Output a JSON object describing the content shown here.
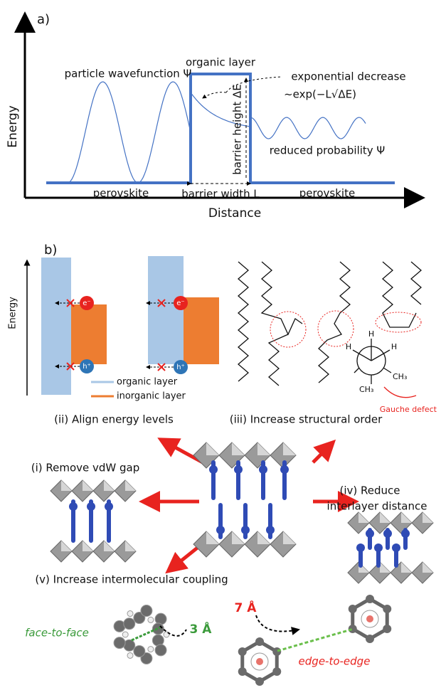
{
  "panel_a": {
    "label": "a)",
    "y_axis": "Energy",
    "x_axis": "Distance",
    "organic_layer": "organic layer",
    "wavefunction": "particle wavefunction Ψ",
    "exp_decrease": "exponential decrease",
    "exp_formula": "~exp(−L√ΔE)",
    "barrier_height": "barrier height ΔE",
    "reduced": "reduced probability Ψ",
    "perovskite_left": "perovskite",
    "barrier_width": "barrier width L",
    "perovskite_right": "perovskite"
  },
  "panel_b": {
    "label": "b)",
    "y_axis": "Energy",
    "electrons": [
      "e⁻",
      "e⁻"
    ],
    "holes": [
      "h⁺",
      "h⁺"
    ],
    "legend": [
      "organic layer",
      "inorganic layer"
    ],
    "hydrogens": [
      "H",
      "H",
      "H"
    ],
    "methyls": [
      "CH₃",
      "CH₃"
    ],
    "gauche": "Gauche defect",
    "strategies": {
      "ii": "(ii) Align energy levels",
      "iii": "(iii) Increase structural order",
      "i": "(i) Remove vdW gap",
      "iv": [
        "(iv) Reduce",
        "interlayer distance"
      ],
      "v": "(v) Increase intermolecular coupling"
    },
    "coupling": {
      "face_distance": "3 Å",
      "face_label": "face-to-face",
      "edge_distance": "7 Å",
      "edge_label": "edge-to-edge"
    }
  }
}
